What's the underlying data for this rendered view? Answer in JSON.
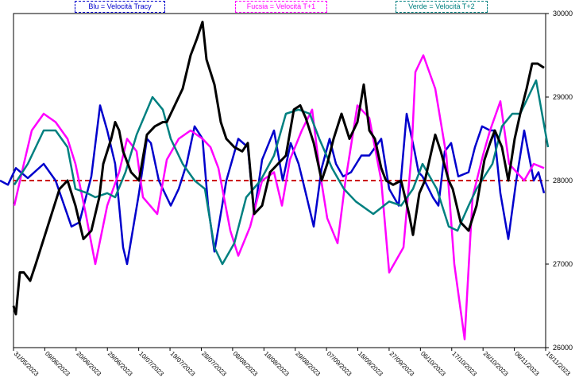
{
  "chart_data": {
    "type": "line",
    "legend": [
      {
        "label": "Blu = Velocità Tracy",
        "color": "#0000cc"
      },
      {
        "label": "Fucsia = Velocità T+1",
        "color": "#ff00ff"
      },
      {
        "label": "Verde = Velocità T+2",
        "color": "#008080"
      }
    ],
    "y_ticks": [
      "30000",
      "29000",
      "28000",
      "27000",
      "26000"
    ],
    "ylim": [
      26000,
      30000
    ],
    "x_ticks": [
      "31/05/2023",
      "09/06/2023",
      "20/06/2023",
      "29/06/2023",
      "10/07/2023",
      "19/07/2023",
      "28/07/2023",
      "08/08/2023",
      "18/08/2023",
      "29/08/2023",
      "07/09/2023",
      "18/09/2023",
      "27/09/2023",
      "06/10/2023",
      "17/10/2023",
      "26/10/2023",
      "06/11/2023",
      "15/11/2023"
    ],
    "reference_line": {
      "value": 28000,
      "color": "#cc0000",
      "style": "dashed"
    },
    "series": [
      {
        "name": "Blu = Velocità Tracy",
        "color": "#0000cc",
        "x": [
          0,
          10,
          20,
          35,
          55,
          70,
          90,
          100,
          115,
          126,
          135,
          145,
          155,
          160,
          175,
          185,
          190,
          200,
          215,
          225,
          235,
          245,
          255,
          262,
          270,
          285,
          300,
          312,
          320,
          330,
          345,
          356,
          366,
          376,
          385,
          395,
          405,
          415,
          423,
          432,
          442,
          455,
          465,
          480,
          490,
          502,
          512,
          522,
          527,
          532,
          545,
          552,
          560,
          568,
          577,
          590,
          598,
          607,
          617,
          622,
          630,
          640,
          650,
          660,
          672,
          678,
          685
        ],
        "y": [
          28000,
          27950,
          28150,
          28030,
          28200,
          28000,
          27450,
          27500,
          28050,
          28900,
          28600,
          28200,
          27200,
          27000,
          27850,
          28500,
          28450,
          28000,
          27700,
          27900,
          28200,
          28650,
          28500,
          27700,
          27150,
          28000,
          28500,
          28400,
          27600,
          28250,
          28600,
          28000,
          28450,
          28200,
          27850,
          27450,
          28150,
          28500,
          28200,
          28050,
          28100,
          28300,
          28300,
          28500,
          27900,
          27700,
          28800,
          28350,
          28100,
          28050,
          27800,
          27700,
          28350,
          28450,
          28050,
          28100,
          28400,
          28650,
          28600,
          28600,
          27850,
          27300,
          28000,
          28600,
          28000,
          28100,
          27850
        ]
      },
      {
        "name": "Fucsia = Velocità T+1",
        "color": "#ff00ff",
        "x": [
          18,
          30,
          40,
          55,
          70,
          85,
          95,
          108,
          120,
          135,
          150,
          160,
          172,
          180,
          198,
          210,
          225,
          240,
          255,
          265,
          275,
          290,
          300,
          315,
          330,
          345,
          355,
          365,
          380,
          393,
          402,
          412,
          425,
          435,
          450,
          465,
          480,
          490,
          508,
          518,
          523,
          533,
          548,
          562,
          572,
          585,
          595,
          608,
          617,
          630,
          641,
          660,
          672,
          685
        ],
        "y": [
          27700,
          28200,
          28600,
          28800,
          28700,
          28500,
          28200,
          27600,
          27000,
          27700,
          28100,
          28500,
          28350,
          27800,
          27600,
          28250,
          28500,
          28600,
          28500,
          28400,
          28150,
          27400,
          27100,
          27450,
          28000,
          28100,
          27700,
          28250,
          28600,
          28850,
          28150,
          27550,
          27250,
          28000,
          28900,
          28750,
          28000,
          26900,
          27200,
          28300,
          29300,
          29500,
          29100,
          28300,
          27000,
          26100,
          27800,
          28300,
          28600,
          28950,
          28200,
          28000,
          28200,
          28150
        ]
      },
      {
        "name": "Verde = Velocità T+2",
        "color": "#008080",
        "x": [
          18,
          35,
          55,
          70,
          85,
          95,
          110,
          120,
          135,
          145,
          158,
          172,
          192,
          205,
          215,
          230,
          245,
          258,
          270,
          280,
          295,
          310,
          328,
          345,
          360,
          376,
          390,
          402,
          418,
          433,
          448,
          470,
          490,
          505,
          520,
          532,
          550,
          565,
          576,
          590,
          600,
          620,
          632,
          645,
          655,
          665,
          675,
          690
        ],
        "y": [
          27950,
          28200,
          28600,
          28600,
          28400,
          27900,
          27850,
          27800,
          27850,
          27800,
          28100,
          28550,
          29000,
          28850,
          28500,
          28200,
          28000,
          27900,
          27200,
          27000,
          27250,
          27800,
          28000,
          28300,
          28800,
          28850,
          28800,
          28500,
          28150,
          27900,
          27750,
          27600,
          27750,
          27700,
          27900,
          28200,
          27900,
          27450,
          27400,
          27700,
          27900,
          28200,
          28650,
          28800,
          28800,
          29000,
          29200,
          28400
        ]
      },
      {
        "name": "",
        "color": "#000000",
        "x": [
          17,
          20,
          25,
          30,
          38,
          45,
          55,
          65,
          75,
          85,
          95,
          100,
          105,
          115,
          125,
          130,
          140,
          145,
          150,
          155,
          165,
          175,
          185,
          195,
          205,
          210,
          220,
          230,
          240,
          248,
          255,
          260,
          265,
          270,
          278,
          285,
          295,
          305,
          312,
          320,
          330,
          340,
          350,
          360,
          370,
          378,
          385,
          395,
          405,
          412,
          420,
          430,
          440,
          450,
          458,
          465,
          472,
          480,
          486,
          495,
          505,
          515,
          520,
          528,
          535,
          542,
          548,
          555,
          565,
          570,
          580,
          590,
          600,
          610,
          617,
          623,
          632,
          640,
          648,
          655,
          663,
          670,
          677,
          685
        ],
        "y": [
          26500,
          26400,
          26900,
          26900,
          26800,
          27000,
          27300,
          27600,
          27900,
          28000,
          27700,
          27500,
          27300,
          27400,
          27800,
          28200,
          28500,
          28700,
          28600,
          28350,
          28100,
          28000,
          28550,
          28650,
          28700,
          28700,
          28900,
          29100,
          29500,
          29700,
          29900,
          29450,
          29300,
          29150,
          28700,
          28500,
          28400,
          28350,
          28450,
          27600,
          27700,
          28100,
          28200,
          28300,
          28850,
          28900,
          28750,
          28450,
          28000,
          28200,
          28500,
          28800,
          28500,
          28700,
          29150,
          28600,
          28500,
          28150,
          28000,
          27950,
          28000,
          27600,
          27350,
          27850,
          28000,
          28300,
          28550,
          28350,
          28000,
          27900,
          27500,
          27400,
          27700,
          28250,
          28450,
          28600,
          28400,
          28000,
          28500,
          28800,
          29100,
          29400,
          29400,
          29350
        ]
      }
    ]
  }
}
